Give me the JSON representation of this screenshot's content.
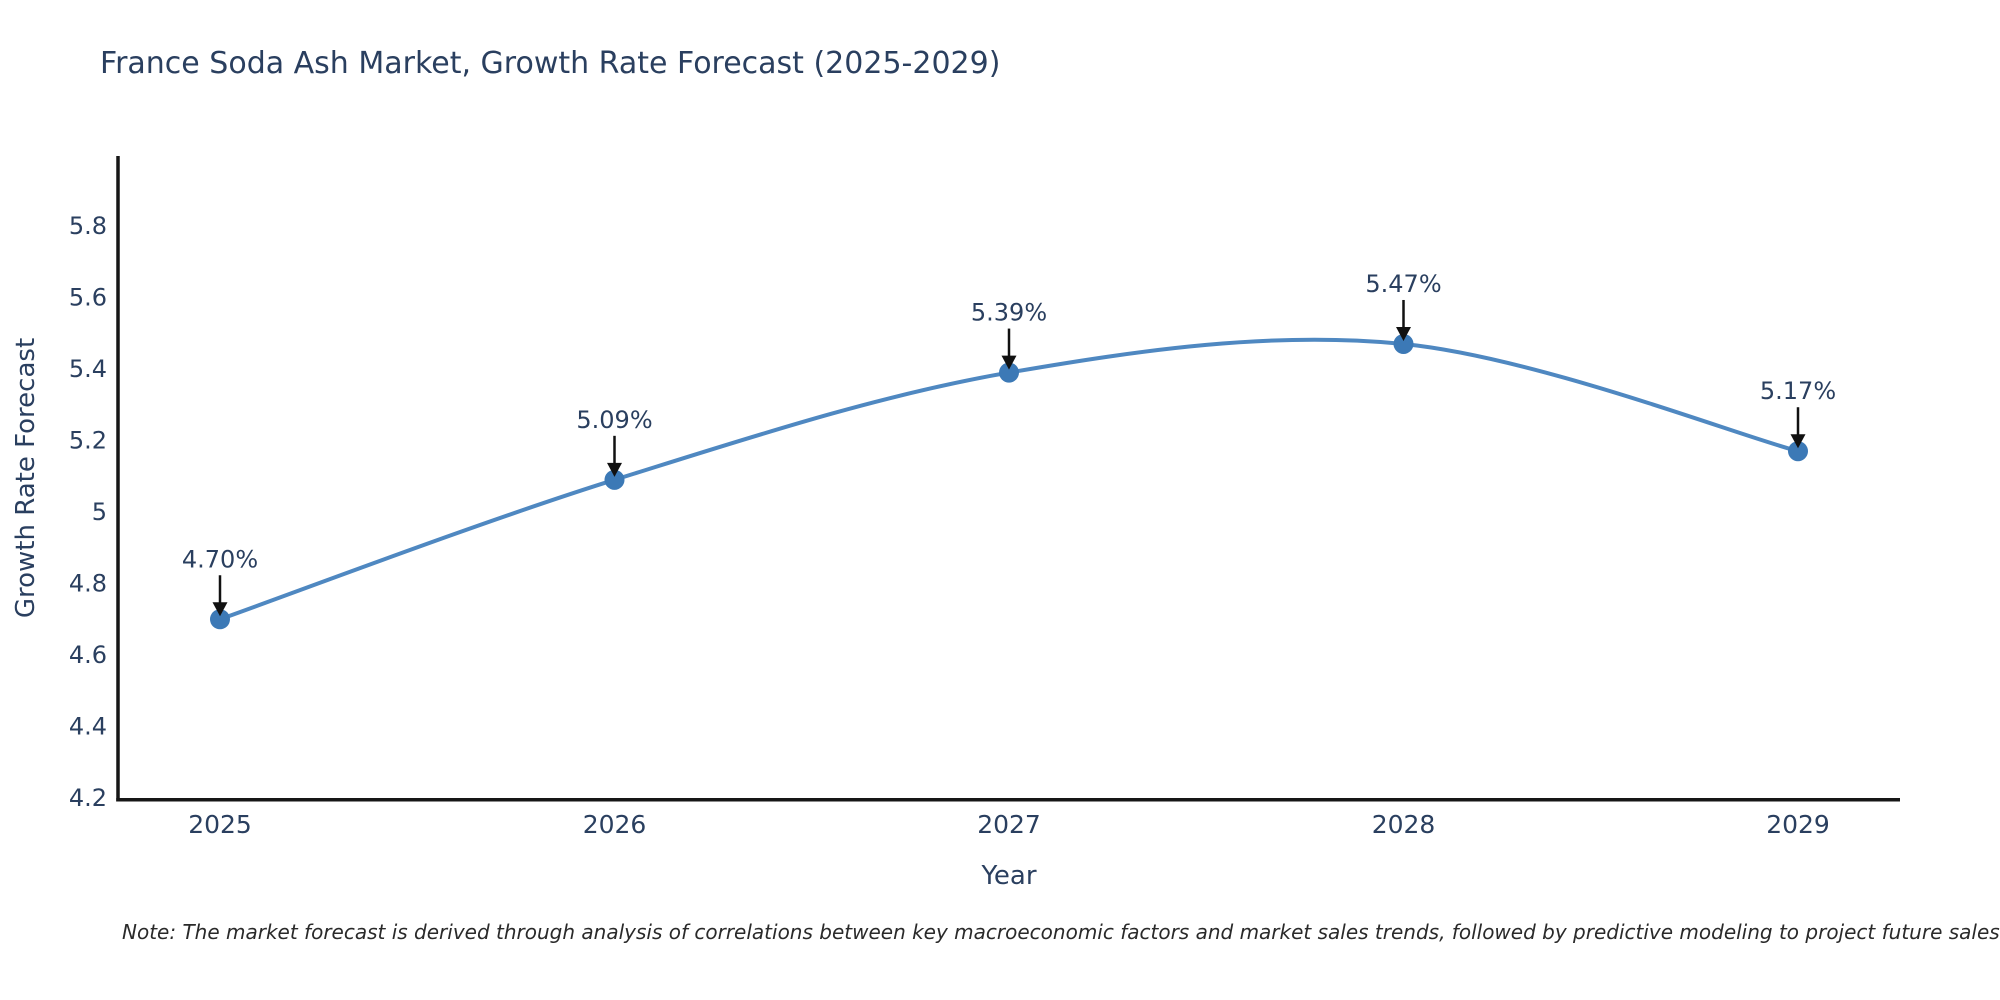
{
  "title": "France Soda Ash Market, Growth Rate Forecast (2025-2029)",
  "note": "Note: The market forecast is derived through analysis of correlations between key macroeconomic factors and market sales trends, followed by predictive modeling to project future sales",
  "chart_data": {
    "type": "line",
    "title": "France Soda Ash Market, Growth Rate Forecast (2025-2029)",
    "xlabel": "Year",
    "ylabel": "Growth Rate Forecast",
    "categories": [
      "2025",
      "2026",
      "2027",
      "2028",
      "2029"
    ],
    "values": [
      4.7,
      5.09,
      5.39,
      5.47,
      5.17
    ],
    "point_labels": [
      "4.70%",
      "5.09%",
      "5.39%",
      "5.47%",
      "5.17%"
    ],
    "ylim": [
      4.2,
      6.0
    ],
    "yticks": [
      4.2,
      4.4,
      4.6,
      4.8,
      5.0,
      5.2,
      5.4,
      5.6,
      5.8
    ],
    "line_shape": "spline",
    "grid": false,
    "legend_position": "none",
    "colors": {
      "line": "#4f88c1",
      "marker": "#3c79b6",
      "axis_line": "#161616",
      "text": "#2a3f5f",
      "annotation_arrow": "#111111"
    }
  }
}
